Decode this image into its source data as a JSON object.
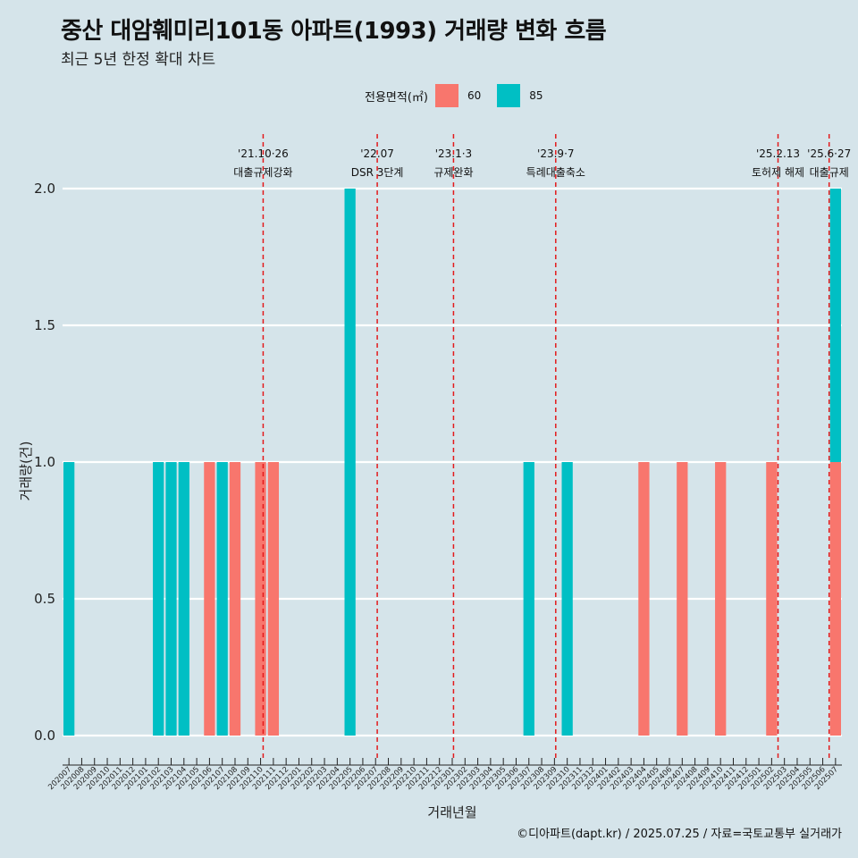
{
  "header": {
    "title": "중산 대암훼미리101동 아파트(1993) 거래량 변화 흐름",
    "subtitle": "최근 5년 한정 확대 차트"
  },
  "legend": {
    "title": "전용면적(㎡)",
    "items": [
      {
        "label": "60",
        "color": "#f8766d"
      },
      {
        "label": "85",
        "color": "#00bfc4"
      }
    ]
  },
  "caption": "©디아파트(dapt.kr) / 2025.07.25 / 자료=국토교통부 실거래가",
  "chart_data": {
    "type": "bar",
    "xlabel": "거래년월",
    "ylabel": "거래량(건)",
    "ylim": [
      0,
      2
    ],
    "yticks": [
      "0.0",
      "0.5",
      "1.0",
      "1.5",
      "2.0"
    ],
    "categories": [
      "202007",
      "202008",
      "202009",
      "202010",
      "202011",
      "202012",
      "202101",
      "202102",
      "202103",
      "202104",
      "202105",
      "202106",
      "202107",
      "202108",
      "202109",
      "202110",
      "202111",
      "202112",
      "202201",
      "202202",
      "202203",
      "202204",
      "202205",
      "202206",
      "202207",
      "202208",
      "202209",
      "202210",
      "202211",
      "202212",
      "202301",
      "202302",
      "202303",
      "202304",
      "202305",
      "202306",
      "202307",
      "202308",
      "202309",
      "202310",
      "202311",
      "202312",
      "202401",
      "202402",
      "202403",
      "202404",
      "202405",
      "202406",
      "202407",
      "202408",
      "202409",
      "202410",
      "202411",
      "202412",
      "202501",
      "202502",
      "202503",
      "202504",
      "202505",
      "202506",
      "202507"
    ],
    "series": [
      {
        "name": "60",
        "color": "#f8766d",
        "values": [
          0,
          0,
          0,
          0,
          0,
          0,
          0,
          0,
          0,
          0,
          0,
          1,
          0,
          1,
          0,
          1,
          1,
          0,
          0,
          0,
          0,
          0,
          0,
          0,
          0,
          0,
          0,
          0,
          0,
          0,
          0,
          0,
          0,
          0,
          0,
          0,
          0,
          0,
          0,
          0,
          0,
          0,
          0,
          0,
          0,
          1,
          0,
          0,
          1,
          0,
          0,
          1,
          0,
          0,
          0,
          1,
          0,
          0,
          0,
          0,
          1
        ]
      },
      {
        "name": "85",
        "color": "#00bfc4",
        "values": [
          1,
          0,
          0,
          0,
          0,
          0,
          0,
          1,
          1,
          1,
          0,
          0,
          1,
          0,
          0,
          0,
          0,
          0,
          0,
          0,
          0,
          0,
          2,
          0,
          0,
          0,
          0,
          0,
          0,
          0,
          0,
          0,
          0,
          0,
          0,
          0,
          1,
          0,
          0,
          1,
          0,
          0,
          0,
          0,
          0,
          0,
          0,
          0,
          0,
          0,
          0,
          0,
          0,
          0,
          0,
          0,
          0,
          0,
          0,
          0,
          1
        ]
      }
    ],
    "events": [
      {
        "x": 15.2,
        "date": "'21.10·26",
        "label": "대출규제강화"
      },
      {
        "x": 24.13,
        "date": "'22.07",
        "label": "DSR 3단계"
      },
      {
        "x": 30.1,
        "date": "'23.1·3",
        "label": "규제완화"
      },
      {
        "x": 38.1,
        "date": "'23.9·7",
        "label": "특례대출축소"
      },
      {
        "x": 55.5,
        "date": "'25.2.13",
        "label": "토허제 해제"
      },
      {
        "x": 59.5,
        "date": "'25.6·27",
        "label": "대출규제"
      }
    ],
    "grid": true,
    "legend_position": "top"
  }
}
